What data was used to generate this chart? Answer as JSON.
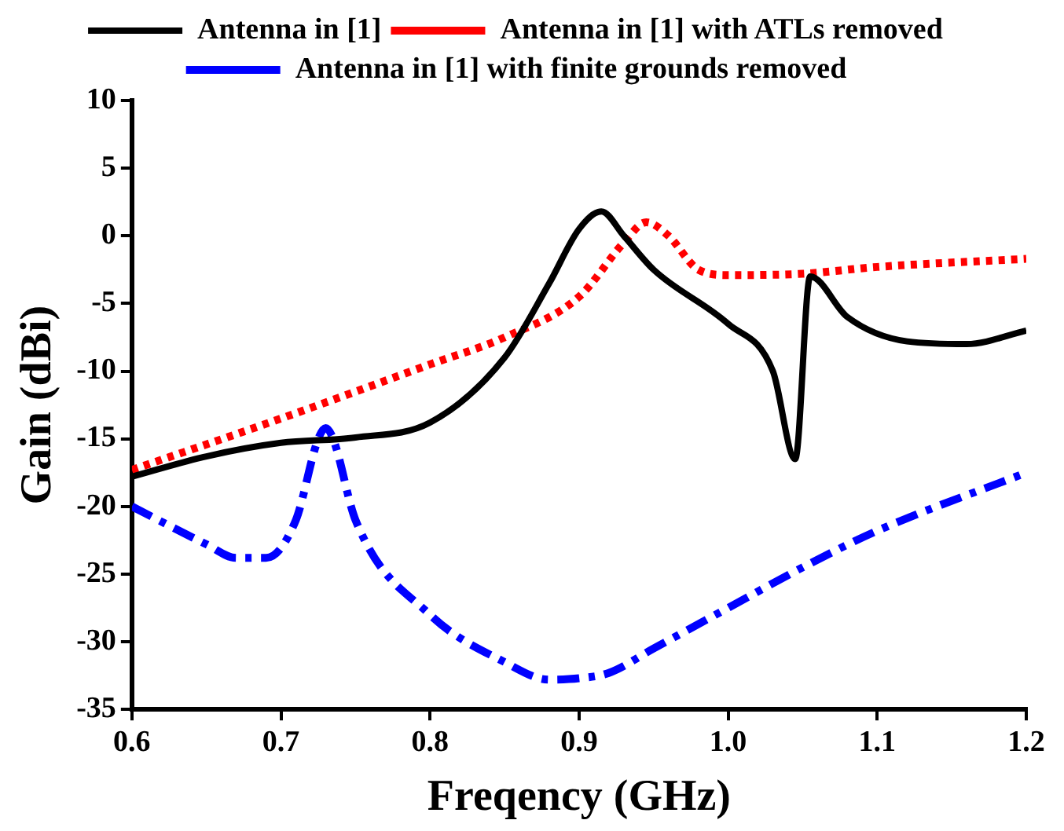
{
  "chart_data": {
    "type": "line",
    "xlabel": "Freqency (GHz)",
    "ylabel": "Gain (dBi)",
    "xlim": [
      0.6,
      1.2
    ],
    "xticks": [
      {
        "value": 0.6,
        "label": "0.6"
      },
      {
        "value": 0.7,
        "label": "0.7"
      },
      {
        "value": 0.8,
        "label": "0.8"
      },
      {
        "value": 0.9,
        "label": "0.9"
      },
      {
        "value": 1.0,
        "label": "1.0"
      },
      {
        "value": 1.1,
        "label": "1.1"
      },
      {
        "value": 1.2,
        "label": "1.2"
      }
    ],
    "ylim": [
      -35,
      10
    ],
    "yticks": [
      -35,
      -30,
      -25,
      -20,
      -15,
      -10,
      -5,
      0,
      5,
      10
    ],
    "grid": false,
    "legend": "top",
    "marker": "none",
    "series": [
      {
        "name": "Antenna in [1]",
        "color": "#000000",
        "line_style": "solid",
        "x": [
          0.6,
          0.65,
          0.7,
          0.75,
          0.8,
          0.85,
          0.88,
          0.9,
          0.915,
          0.93,
          0.95,
          1.0,
          1.03,
          1.045,
          1.055,
          1.08,
          1.12,
          1.16,
          1.2
        ],
        "values": [
          -17.8,
          -16.3,
          -15.3,
          -14.9,
          -13.8,
          -9,
          -3.5,
          0.5,
          1.8,
          0,
          -2.5,
          -6.5,
          -10,
          -16.5,
          -3,
          -6,
          -7.8,
          -8,
          -7
        ]
      },
      {
        "name": "Antenna in [1] with ATLs removed",
        "color": "#ff0000",
        "line_style": "dotted",
        "x": [
          0.6,
          0.7,
          0.8,
          0.85,
          0.9,
          0.93,
          0.945,
          0.96,
          0.98,
          1.0,
          1.05,
          1.1,
          1.2
        ],
        "values": [
          -17.3,
          -13.5,
          -9.5,
          -7.5,
          -4.5,
          -0.5,
          1,
          0,
          -2.5,
          -2.9,
          -2.8,
          -2.3,
          -1.7
        ]
      },
      {
        "name": "Antenna in [1] with finite grounds removed",
        "color": "#0000ff",
        "line_style": "dashdot",
        "x": [
          0.6,
          0.65,
          0.67,
          0.69,
          0.71,
          0.725,
          0.73,
          0.735,
          0.75,
          0.8,
          0.85,
          0.88,
          0.9,
          0.92,
          0.95,
          1.0,
          1.05,
          1.1,
          1.2
        ],
        "values": [
          -20,
          -22.8,
          -23.8,
          -23.8,
          -21,
          -15,
          -14.2,
          -15,
          -21,
          -28,
          -31.5,
          -32.8,
          -32.7,
          -32.3,
          -30.5,
          -27.5,
          -24.5,
          -21.8,
          -17.5
        ]
      }
    ]
  }
}
